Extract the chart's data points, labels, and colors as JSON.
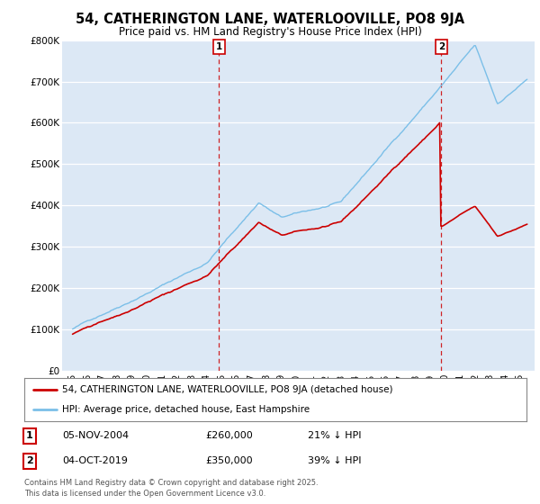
{
  "title": "54, CATHERINGTON LANE, WATERLOOVILLE, PO8 9JA",
  "subtitle": "Price paid vs. HM Land Registry's House Price Index (HPI)",
  "legend_line1": "54, CATHERINGTON LANE, WATERLOOVILLE, PO8 9JA (detached house)",
  "legend_line2": "HPI: Average price, detached house, East Hampshire",
  "annotation1_label": "1",
  "annotation1_date": "05-NOV-2004",
  "annotation1_price": "£260,000",
  "annotation1_pct": "21% ↓ HPI",
  "annotation2_label": "2",
  "annotation2_date": "04-OCT-2019",
  "annotation2_price": "£350,000",
  "annotation2_pct": "39% ↓ HPI",
  "footer": "Contains HM Land Registry data © Crown copyright and database right 2025.\nThis data is licensed under the Open Government Licence v3.0.",
  "hpi_color": "#7bbfe8",
  "price_color": "#cc0000",
  "vline_color": "#cc0000",
  "background_color": "#dce8f5",
  "ylim": [
    0,
    800000
  ],
  "yticks": [
    0,
    100000,
    200000,
    300000,
    400000,
    500000,
    600000,
    700000,
    800000
  ],
  "ytick_labels": [
    "£0",
    "£100K",
    "£200K",
    "£300K",
    "£400K",
    "£500K",
    "£600K",
    "£700K",
    "£800K"
  ],
  "sale1_year": 2004.83,
  "sale1_price": 260000,
  "sale2_year": 2019.75,
  "sale2_price": 350000,
  "xlim_left": 1994.3,
  "xlim_right": 2026.0
}
